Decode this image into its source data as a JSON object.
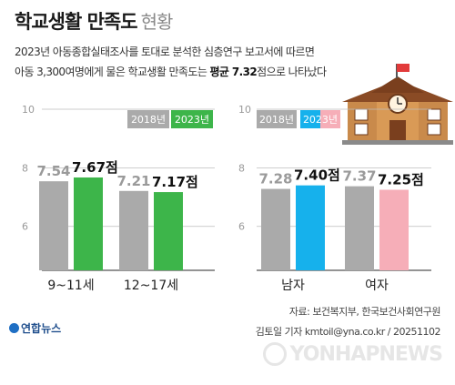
{
  "title": "학교생활 만족도",
  "subtitle": "현황",
  "description": {
    "line1": "2023년 아동종합실태조사를 토대로 분석한 심층연구 보고서에 따르면",
    "line2_pre": "아동 3,300여명에게 물은 학교생활 만족도는 ",
    "line2_bold": "평균 7.32",
    "line2_post": "점으로 나타났다"
  },
  "source": "자료: 보건복지부, 한국보건사회연구원",
  "credit": "김토일 기자 kmtoil@yna.co.kr / 20251102",
  "logo_text": "연합뉴스",
  "watermark": "YONHAPNEWS",
  "icon": "school-building-icon",
  "colors": {
    "bar_2018": "#aaaaaa",
    "bar_2023_age": "#3db54a",
    "bar_2023_male": "#16b1ec",
    "bar_2023_female": "#f6aeb8",
    "label_2018": "#9a9a9a",
    "label_2023": "#111111",
    "grid": "#bdbdbd",
    "axis_tick": "#999999"
  },
  "chart_data": [
    {
      "type": "bar",
      "title": "",
      "categories": [
        "9~11세",
        "12~17세"
      ],
      "series": [
        {
          "name": "2018년",
          "values": [
            7.54,
            7.21
          ]
        },
        {
          "name": "2023년",
          "values": [
            7.67,
            7.17
          ]
        }
      ],
      "value_labels": [
        [
          "7.54",
          "7.67점"
        ],
        [
          "7.21",
          "7.17점"
        ]
      ],
      "yticks": [
        6,
        8,
        10
      ],
      "ylim": [
        4.5,
        10
      ],
      "legend": "top-right",
      "grid": true
    },
    {
      "type": "bar",
      "title": "",
      "categories": [
        "남자",
        "여자"
      ],
      "series": [
        {
          "name": "2018년",
          "values": [
            7.28,
            7.37
          ]
        },
        {
          "name": "2023년",
          "values": [
            7.4,
            7.25
          ]
        }
      ],
      "value_labels": [
        [
          "7.28",
          "7.40점"
        ],
        [
          "7.37",
          "7.25점"
        ]
      ],
      "yticks": [
        6,
        8,
        10
      ],
      "ylim": [
        4.5,
        10
      ],
      "legend": "top-right",
      "grid": true
    }
  ]
}
